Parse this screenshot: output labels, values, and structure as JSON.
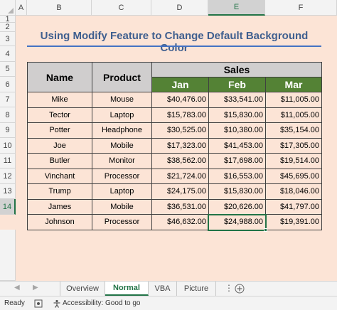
{
  "columns": [
    "A",
    "B",
    "C",
    "D",
    "E",
    "F"
  ],
  "rows": [
    "1",
    "2",
    "3",
    "4",
    "5",
    "6",
    "7",
    "8",
    "9",
    "10",
    "11",
    "12",
    "13",
    "14"
  ],
  "title": "Using Modify Feature to Change Default Background Color",
  "table": {
    "h_name": "Name",
    "h_product": "Product",
    "h_sales": "Sales",
    "h_jan": "Jan",
    "h_feb": "Feb",
    "h_mar": "Mar",
    "rows": [
      [
        "Mike",
        "Mouse",
        "$40,476.00",
        "$33,541.00",
        "$11,005.00"
      ],
      [
        "Tector",
        "Laptop",
        "$15,783.00",
        "$15,830.00",
        "$11,005.00"
      ],
      [
        "Potter",
        "Headphone",
        "$30,525.00",
        "$10,380.00",
        "$35,154.00"
      ],
      [
        "Joe",
        "Mobile",
        "$17,323.00",
        "$41,453.00",
        "$17,305.00"
      ],
      [
        "Butler",
        "Monitor",
        "$38,562.00",
        "$17,698.00",
        "$19,514.00"
      ],
      [
        "Vinchant",
        "Processor",
        "$21,724.00",
        "$16,553.00",
        "$45,695.00"
      ],
      [
        "Trump",
        "Laptop",
        "$24,175.00",
        "$15,830.00",
        "$18,046.00"
      ],
      [
        "James",
        "Mobile",
        "$36,531.00",
        "$20,626.00",
        "$41,797.00"
      ],
      [
        "Johnson",
        "Processor",
        "$46,632.00",
        "$24,988.00",
        "$19,391.00"
      ]
    ]
  },
  "tabs": [
    "Overview",
    "Normal",
    "VBA",
    "Picture"
  ],
  "status": {
    "ready": "Ready",
    "accessibility": "Accessibility: Good to go"
  },
  "colors": {
    "sheet_bg": "#fce4d6",
    "header_green": "#548235",
    "header_gray": "#d0cece",
    "excel_green": "#217346"
  },
  "icons": [
    "nav-prev-icon",
    "nav-next-icon",
    "more-sheets-icon",
    "add-sheet-icon",
    "macro-icon",
    "accessibility-icon"
  ]
}
